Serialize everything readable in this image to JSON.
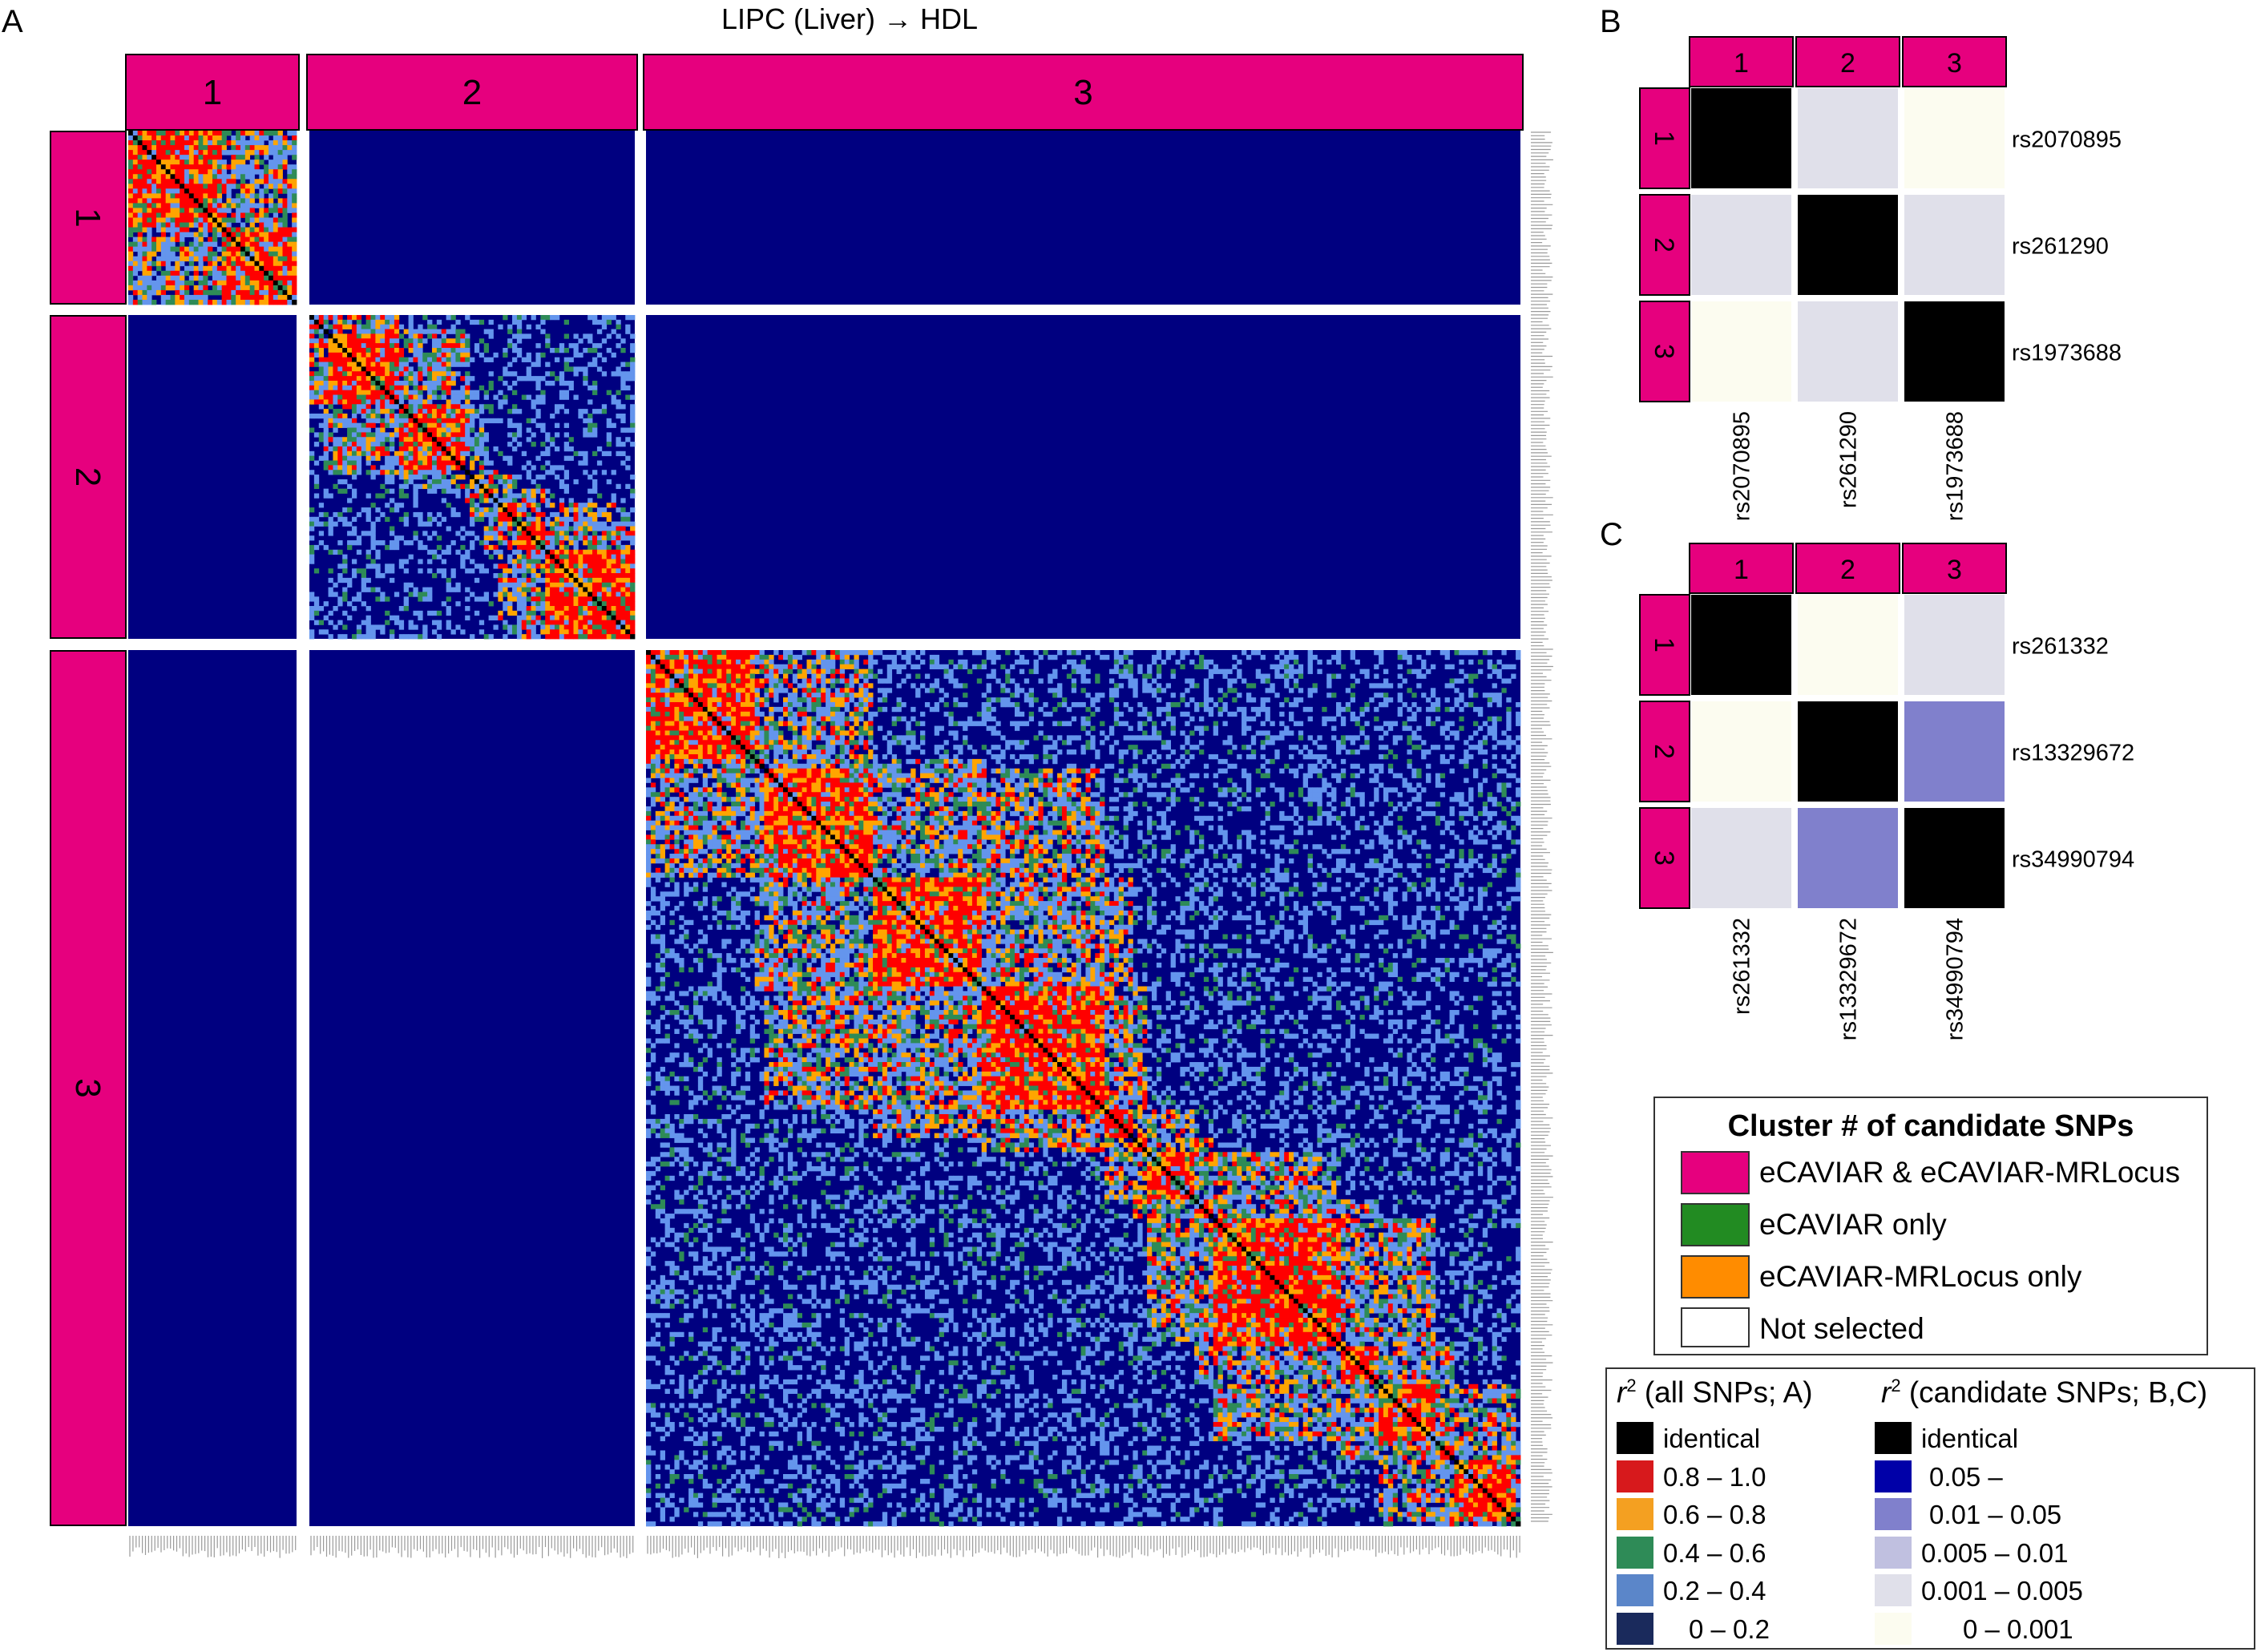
{
  "colors": {
    "magenta": "#e6007e",
    "navy": "#000080",
    "red": "#ff0000",
    "orange": "#ffa500",
    "green": "#2e8b57",
    "lightblue": "#6495ed",
    "black": "#000000"
  },
  "chart_data": [
    {
      "panel": "A",
      "type": "heatmap",
      "title": "LIPC (Liver) → HDL",
      "cluster_labels": [
        "1",
        "2",
        "3"
      ],
      "cluster_sizes_snps": [
        36,
        69,
        185
      ],
      "description_value": "pairwise r2 of all SNPs, blocks grouped by candidate cluster"
    },
    {
      "panel": "B",
      "type": "heatmap",
      "cluster_labels": [
        "1",
        "2",
        "3"
      ],
      "snps": [
        "rs2070895",
        "rs261290",
        "rs1973688"
      ],
      "r2_class_matrix": [
        [
          "identical",
          "0.001 – 0.005",
          "0 – 0.001"
        ],
        [
          "0.001 – 0.005",
          "identical",
          "0.001 – 0.005"
        ],
        [
          "0 – 0.001",
          "0.001 – 0.005",
          "identical"
        ]
      ]
    },
    {
      "panel": "C",
      "type": "heatmap",
      "cluster_labels": [
        "1",
        "2",
        "3"
      ],
      "snps": [
        "rs261332",
        "rs13329672",
        "rs34990794"
      ],
      "r2_class_matrix": [
        [
          "identical",
          "0 – 0.001",
          "0.001 – 0.005"
        ],
        [
          "0 – 0.001",
          "identical",
          "0.01 – 0.05"
        ],
        [
          "0.001 – 0.005",
          "0.01 – 0.05",
          "identical"
        ]
      ]
    }
  ],
  "panel_letters": [
    "A",
    "B",
    "C"
  ],
  "legend_cluster": {
    "title": "Cluster # of candidate SNPs",
    "items": [
      {
        "label": "eCAVIAR & eCAVIAR-MRLocus",
        "color": "#e6007e"
      },
      {
        "label": "eCAVIAR only",
        "color": "#228b22"
      },
      {
        "label": "eCAVIAR-MRLocus only",
        "color": "#ff8c00"
      },
      {
        "label": "Not selected",
        "color": "#ffffff"
      }
    ]
  },
  "legend_r2_all": {
    "title_sym": "r",
    "title_sup": "2",
    "title_rest": "(all SNPs; A)",
    "items": [
      {
        "label": "identical",
        "color": "#000000"
      },
      {
        "label": "0.8 – 1.0",
        "color": "#d7191c"
      },
      {
        "label": "0.6 – 0.8",
        "color": "#f4a021"
      },
      {
        "label": "0.4 – 0.6",
        "color": "#2e8b57"
      },
      {
        "label": "0.2 – 0.4",
        "color": "#5b86c9"
      },
      {
        "label": "0 – 0.2",
        "color": "#1a2a5c"
      }
    ]
  },
  "legend_r2_cand": {
    "title_sym": "r",
    "title_sup": "2",
    "title_rest": "(candidate SNPs; B,C)",
    "items": [
      {
        "label": "identical",
        "color": "#000000"
      },
      {
        "label": "0.05 –",
        "color": "#0000a8"
      },
      {
        "label": "0.01 – 0.05",
        "color": "#8080cc"
      },
      {
        "label": "0.005 – 0.01",
        "color": "#c0c0e0"
      },
      {
        "label": "0.001 – 0.005",
        "color": "#e0e0ea"
      },
      {
        "label": "0 – 0.001",
        "color": "#fcfcf0"
      }
    ]
  }
}
